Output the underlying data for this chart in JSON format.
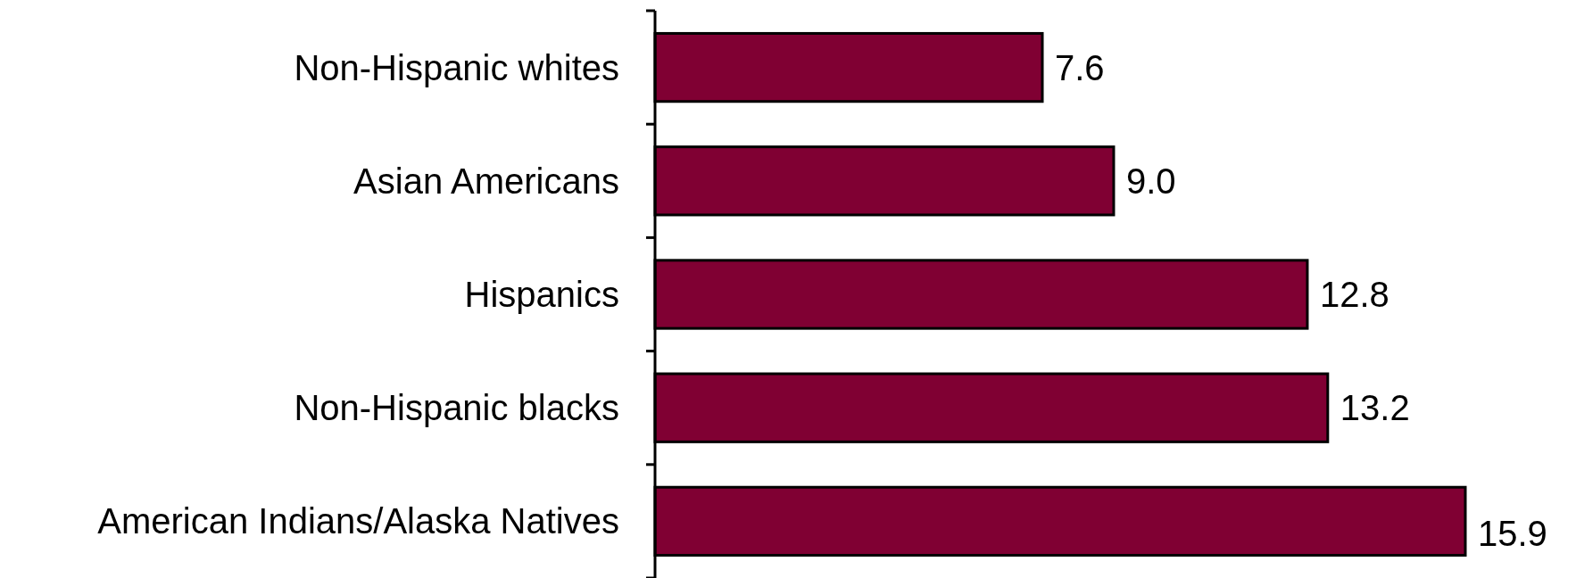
{
  "chart_data": {
    "type": "bar",
    "orientation": "horizontal",
    "categories": [
      "Non-Hispanic whites",
      "Asian Americans",
      "Hispanics",
      "Non-Hispanic blacks",
      "American Indians/Alaska Natives"
    ],
    "values": [
      7.6,
      9.0,
      12.8,
      13.2,
      15.9
    ],
    "value_labels": [
      "7.6",
      "9.0",
      "12.8",
      "13.2",
      "15.9"
    ],
    "color": "#800033"
  }
}
